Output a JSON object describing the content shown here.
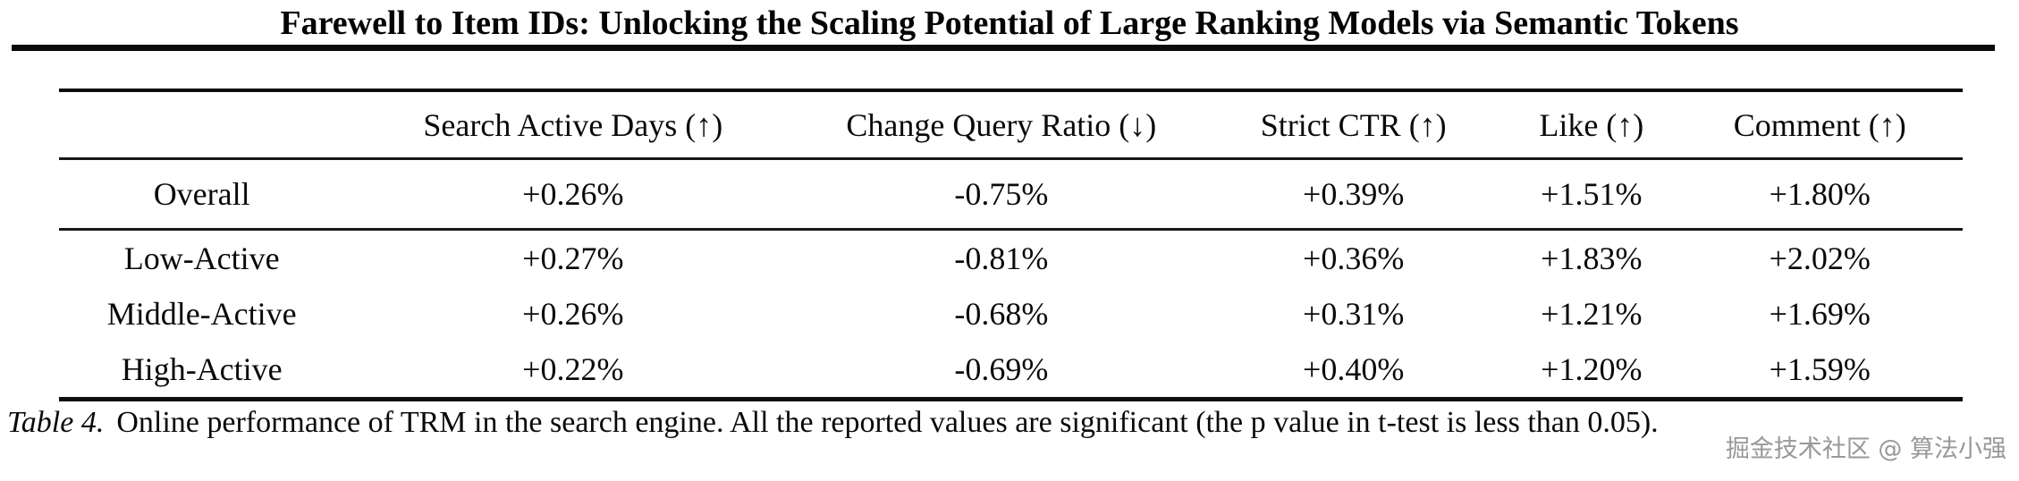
{
  "title": "Farewell to Item IDs: Unlocking the Scaling Potential of Large Ranking Models via Semantic Tokens",
  "table": {
    "headers": [
      "Search Active Days (↑)",
      "Change Query Ratio (↓)",
      "Strict CTR (↑)",
      "Like (↑)",
      "Comment (↑)"
    ],
    "rows": [
      {
        "label": "Overall",
        "values": [
          "+0.26%",
          "-0.75%",
          "+0.39%",
          "+1.51%",
          "+1.80%"
        ]
      },
      {
        "label": "Low-Active",
        "values": [
          "+0.27%",
          "-0.81%",
          "+0.36%",
          "+1.83%",
          "+2.02%"
        ]
      },
      {
        "label": "Middle-Active",
        "values": [
          "+0.26%",
          "-0.68%",
          "+0.31%",
          "+1.21%",
          "+1.69%"
        ]
      },
      {
        "label": "High-Active",
        "values": [
          "+0.22%",
          "-0.69%",
          "+0.40%",
          "+1.20%",
          "+1.59%"
        ]
      }
    ]
  },
  "caption": {
    "label": "Table 4.",
    "text": "Online performance of TRM in the search engine. All the reported values are significant (the p value in t-test is less than 0.05)."
  },
  "watermark": "掘金技术社区 @ 算法小强"
}
